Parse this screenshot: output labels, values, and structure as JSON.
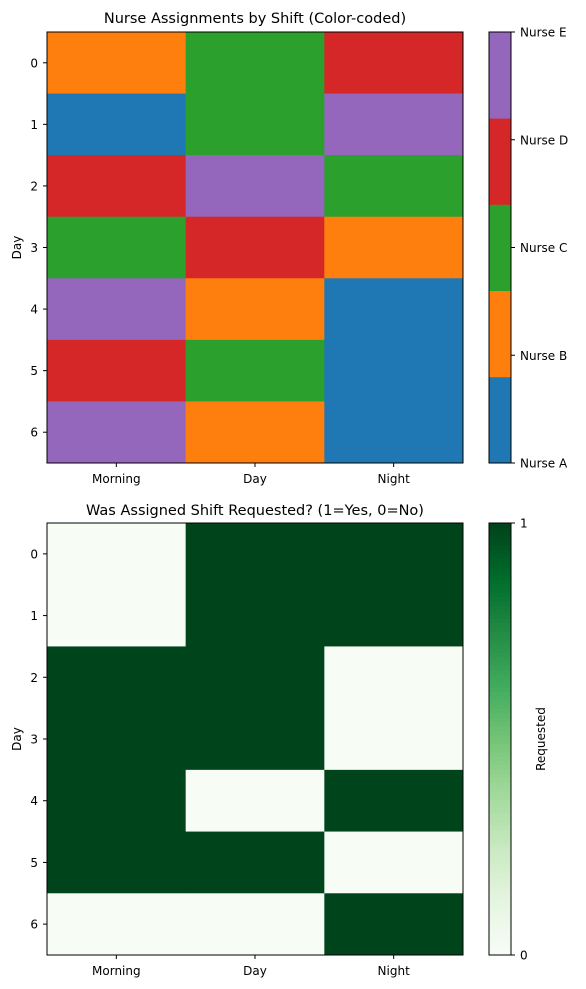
{
  "chart_data": [
    {
      "type": "heatmap",
      "title": "Nurse Assignments by Shift (Color-coded)",
      "xlabel": "",
      "ylabel": "Day",
      "x_categories": [
        "Morning",
        "Day",
        "Night"
      ],
      "y_categories": [
        "0",
        "1",
        "2",
        "3",
        "4",
        "5",
        "6"
      ],
      "values": [
        [
          "Nurse B",
          "Nurse C",
          "Nurse D"
        ],
        [
          "Nurse A",
          "Nurse C",
          "Nurse E"
        ],
        [
          "Nurse D",
          "Nurse E",
          "Nurse C"
        ],
        [
          "Nurse C",
          "Nurse D",
          "Nurse B"
        ],
        [
          "Nurse E",
          "Nurse B",
          "Nurse A"
        ],
        [
          "Nurse D",
          "Nurse C",
          "Nurse A"
        ],
        [
          "Nurse E",
          "Nurse B",
          "Nurse A"
        ]
      ],
      "colorbar": {
        "type": "categorical",
        "categories": [
          "Nurse A",
          "Nurse B",
          "Nurse C",
          "Nurse D",
          "Nurse E"
        ],
        "colors": [
          "#1f77b4",
          "#ff7f0e",
          "#2ca02c",
          "#d62728",
          "#9467bd"
        ],
        "tick_labels": [
          "Nurse A",
          "Nurse B",
          "Nurse C",
          "Nurse D",
          "Nurse E"
        ],
        "label": ""
      }
    },
    {
      "type": "heatmap",
      "title": "Was Assigned Shift Requested? (1=Yes, 0=No)",
      "xlabel": "",
      "ylabel": "Day",
      "x_categories": [
        "Morning",
        "Day",
        "Night"
      ],
      "y_categories": [
        "0",
        "1",
        "2",
        "3",
        "4",
        "5",
        "6"
      ],
      "values": [
        [
          0,
          1,
          1
        ],
        [
          0,
          1,
          1
        ],
        [
          1,
          1,
          0
        ],
        [
          1,
          1,
          0
        ],
        [
          1,
          0,
          1
        ],
        [
          1,
          1,
          0
        ],
        [
          0,
          0,
          1
        ]
      ],
      "colorbar": {
        "type": "continuous",
        "colormap": "Greens",
        "low_color": "#f7fcf5",
        "high_color": "#00441b",
        "range": [
          0,
          1
        ],
        "tick_labels": [
          "0",
          "1"
        ],
        "label": "Requested"
      }
    }
  ]
}
